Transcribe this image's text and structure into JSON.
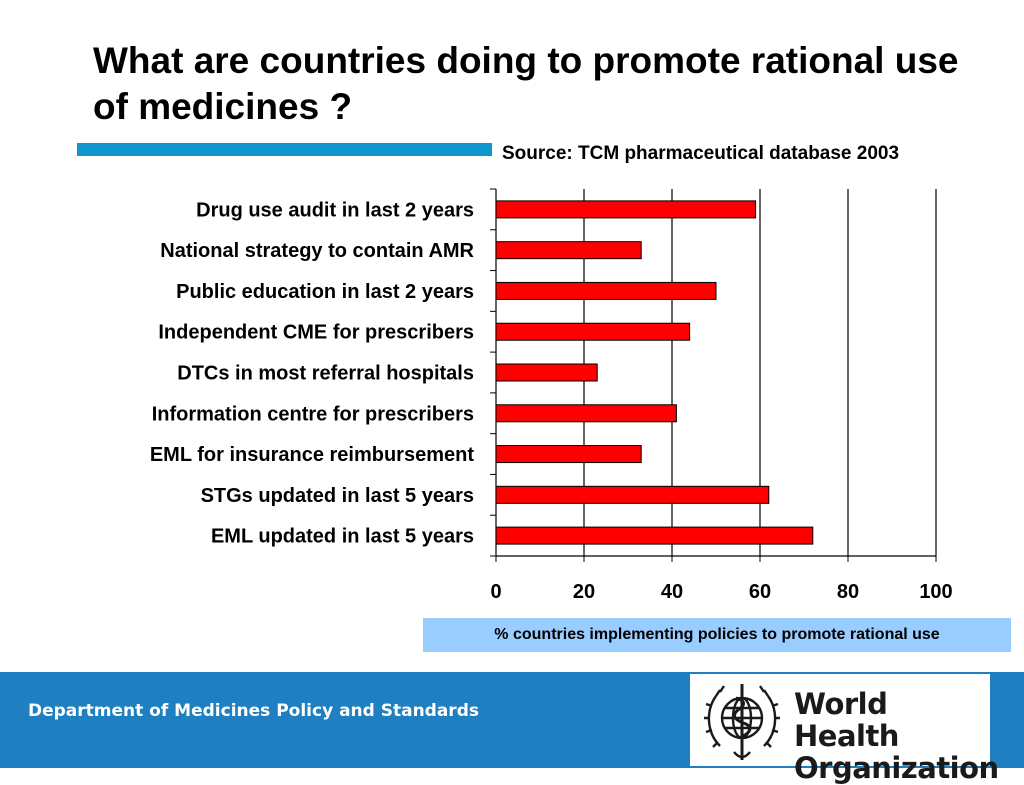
{
  "slide": {
    "title": "What are countries doing to promote rational use of medicines ?",
    "source": "Source: TCM pharmaceutical database 2003"
  },
  "chart_data": {
    "type": "bar",
    "orientation": "horizontal",
    "categories": [
      "Drug use audit in last 2 years",
      "National strategy to contain AMR",
      "Public education in last 2 years",
      "Independent CME for prescribers",
      "DTCs in most referral hospitals",
      "Information centre for prescribers",
      "EML for insurance reimbursement",
      "STGs updated in last 5 years",
      "EML updated in last 5 years"
    ],
    "values": [
      59,
      33,
      50,
      44,
      23,
      41,
      33,
      62,
      72
    ],
    "xlabel": "% countries implementing policies to promote rational use",
    "xlim": [
      0,
      100
    ],
    "xticks": [
      0,
      20,
      40,
      60,
      80,
      100
    ],
    "vertical_gridlines": true,
    "bar_color": "#ff0000"
  },
  "footer": {
    "department": "Department of Medicines Policy and Standards",
    "logo_line1": "World Health",
    "logo_line2": "Organization"
  }
}
